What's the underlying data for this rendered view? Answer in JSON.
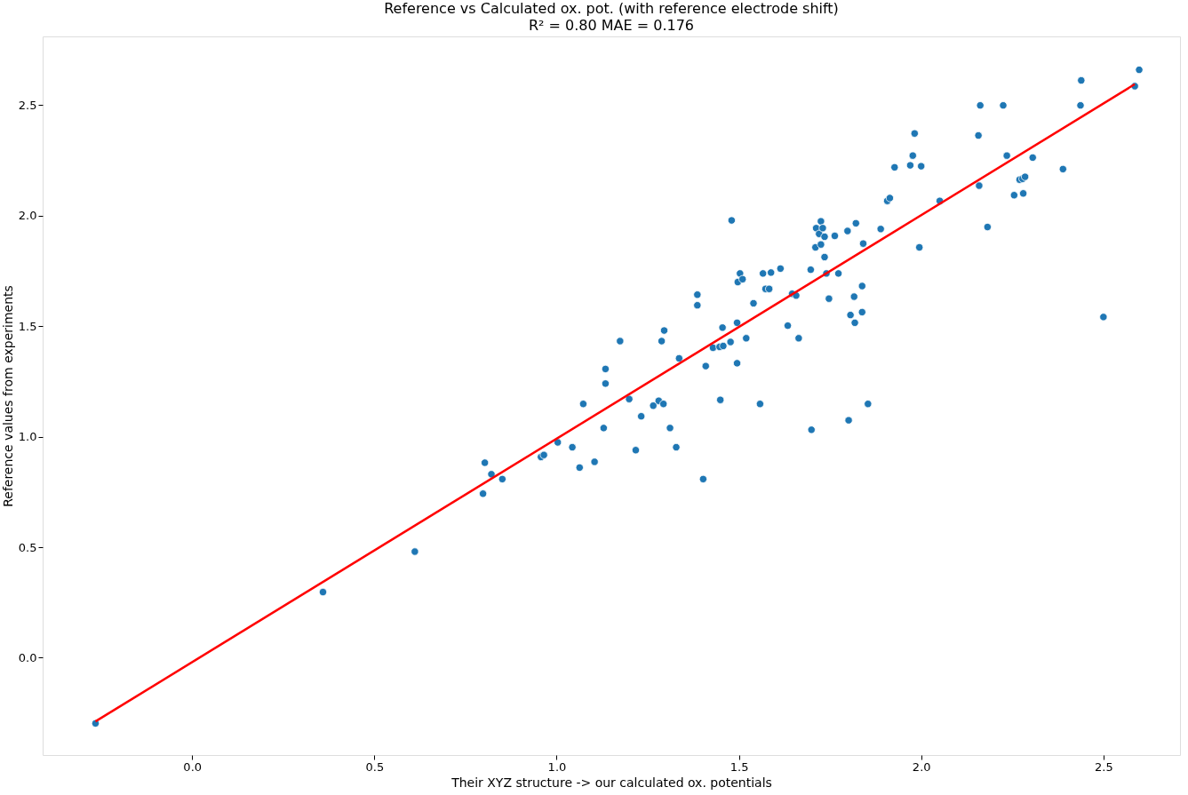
{
  "chart_data": {
    "type": "scatter",
    "title": "Reference vs Calculated ox. pot. (with reference electrode shift)",
    "subtitle": "R² = 0.80 MAE = 0.176",
    "xlabel": "Their XYZ structure -> our calculated ox. potentials",
    "ylabel": "Reference values from experiments",
    "xlim": [
      -0.41,
      2.71
    ],
    "ylim": [
      -0.44,
      2.81
    ],
    "xticks": [
      {
        "value": 0,
        "label": "0.0"
      },
      {
        "value": 0.5,
        "label": "0.5"
      },
      {
        "value": 1,
        "label": "1.0"
      },
      {
        "value": 1.5,
        "label": "1.5"
      },
      {
        "value": 2,
        "label": "2.0"
      },
      {
        "value": 2.5,
        "label": "2.5"
      }
    ],
    "yticks": [
      {
        "value": 0,
        "label": "0.0"
      },
      {
        "value": 0.5,
        "label": "0.5"
      },
      {
        "value": 1,
        "label": "1.0"
      },
      {
        "value": 1.5,
        "label": "1.5"
      },
      {
        "value": 2,
        "label": "2.0"
      },
      {
        "value": 2.5,
        "label": "2.5"
      }
    ],
    "grid": false,
    "series": [
      {
        "color": "#1f77b4",
        "marker": "circle",
        "x": [
          -0.265,
          0.359,
          0.611,
          0.798,
          0.803,
          0.821,
          0.851,
          0.957,
          0.965,
          1.003,
          1.043,
          1.063,
          1.073,
          1.104,
          1.129,
          1.134,
          1.134,
          1.174,
          1.199,
          1.217,
          1.232,
          1.265,
          1.28,
          1.288,
          1.295,
          1.293,
          1.311,
          1.328,
          1.336,
          1.386,
          1.386,
          1.402,
          1.409,
          1.429,
          1.447,
          1.449,
          1.455,
          1.457,
          1.477,
          1.48,
          1.495,
          1.497,
          1.503,
          1.495,
          1.51,
          1.52,
          1.54,
          1.558,
          1.566,
          1.573,
          1.583,
          1.588,
          1.614,
          1.634,
          1.646,
          1.657,
          1.664,
          1.697,
          1.699,
          1.71,
          1.712,
          1.72,
          1.725,
          1.73,
          1.725,
          1.735,
          1.735,
          1.74,
          1.747,
          1.763,
          1.773,
          1.798,
          1.801,
          1.806,
          1.816,
          1.818,
          1.821,
          1.838,
          1.838,
          1.841,
          1.854,
          1.889,
          1.907,
          1.914,
          1.927,
          1.97,
          1.977,
          1.982,
          1.995,
          2.0,
          2.051,
          2.157,
          2.162,
          2.159,
          2.182,
          2.225,
          2.235,
          2.255,
          2.27,
          2.278,
          2.285,
          2.28,
          2.306,
          2.389,
          2.437,
          2.439,
          2.5,
          2.586,
          2.598
        ],
        "values": [
          -0.297,
          0.297,
          0.48,
          0.742,
          0.882,
          0.83,
          0.808,
          0.908,
          0.917,
          0.974,
          0.952,
          0.86,
          1.148,
          0.886,
          1.039,
          1.24,
          1.306,
          1.432,
          1.17,
          0.939,
          1.092,
          1.14,
          1.162,
          1.432,
          1.48,
          1.148,
          1.039,
          0.952,
          1.354,
          1.642,
          1.594,
          0.808,
          1.319,
          1.402,
          1.406,
          1.166,
          1.493,
          1.41,
          1.428,
          1.978,
          1.515,
          1.699,
          1.738,
          1.332,
          1.712,
          1.445,
          1.603,
          1.148,
          1.738,
          1.668,
          1.668,
          1.742,
          1.76,
          1.502,
          1.646,
          1.638,
          1.445,
          1.755,
          1.031,
          1.856,
          1.943,
          1.917,
          1.974,
          1.943,
          1.869,
          1.904,
          1.812,
          1.738,
          1.624,
          1.908,
          1.738,
          1.93,
          1.074,
          1.55,
          1.633,
          1.515,
          1.965,
          1.681,
          1.563,
          1.873,
          1.148,
          1.939,
          2.066,
          2.079,
          2.218,
          2.227,
          2.271,
          2.371,
          1.856,
          2.223,
          2.066,
          2.362,
          2.498,
          2.135,
          1.948,
          2.498,
          2.271,
          2.092,
          2.162,
          2.166,
          2.175,
          2.1,
          2.262,
          2.21,
          2.498,
          2.611,
          1.541,
          2.585,
          2.659
        ]
      },
      {
        "type": "line",
        "color": "#ff0000",
        "x": [
          -0.265,
          2.586
        ],
        "values": [
          -0.288,
          2.594
        ]
      }
    ]
  }
}
